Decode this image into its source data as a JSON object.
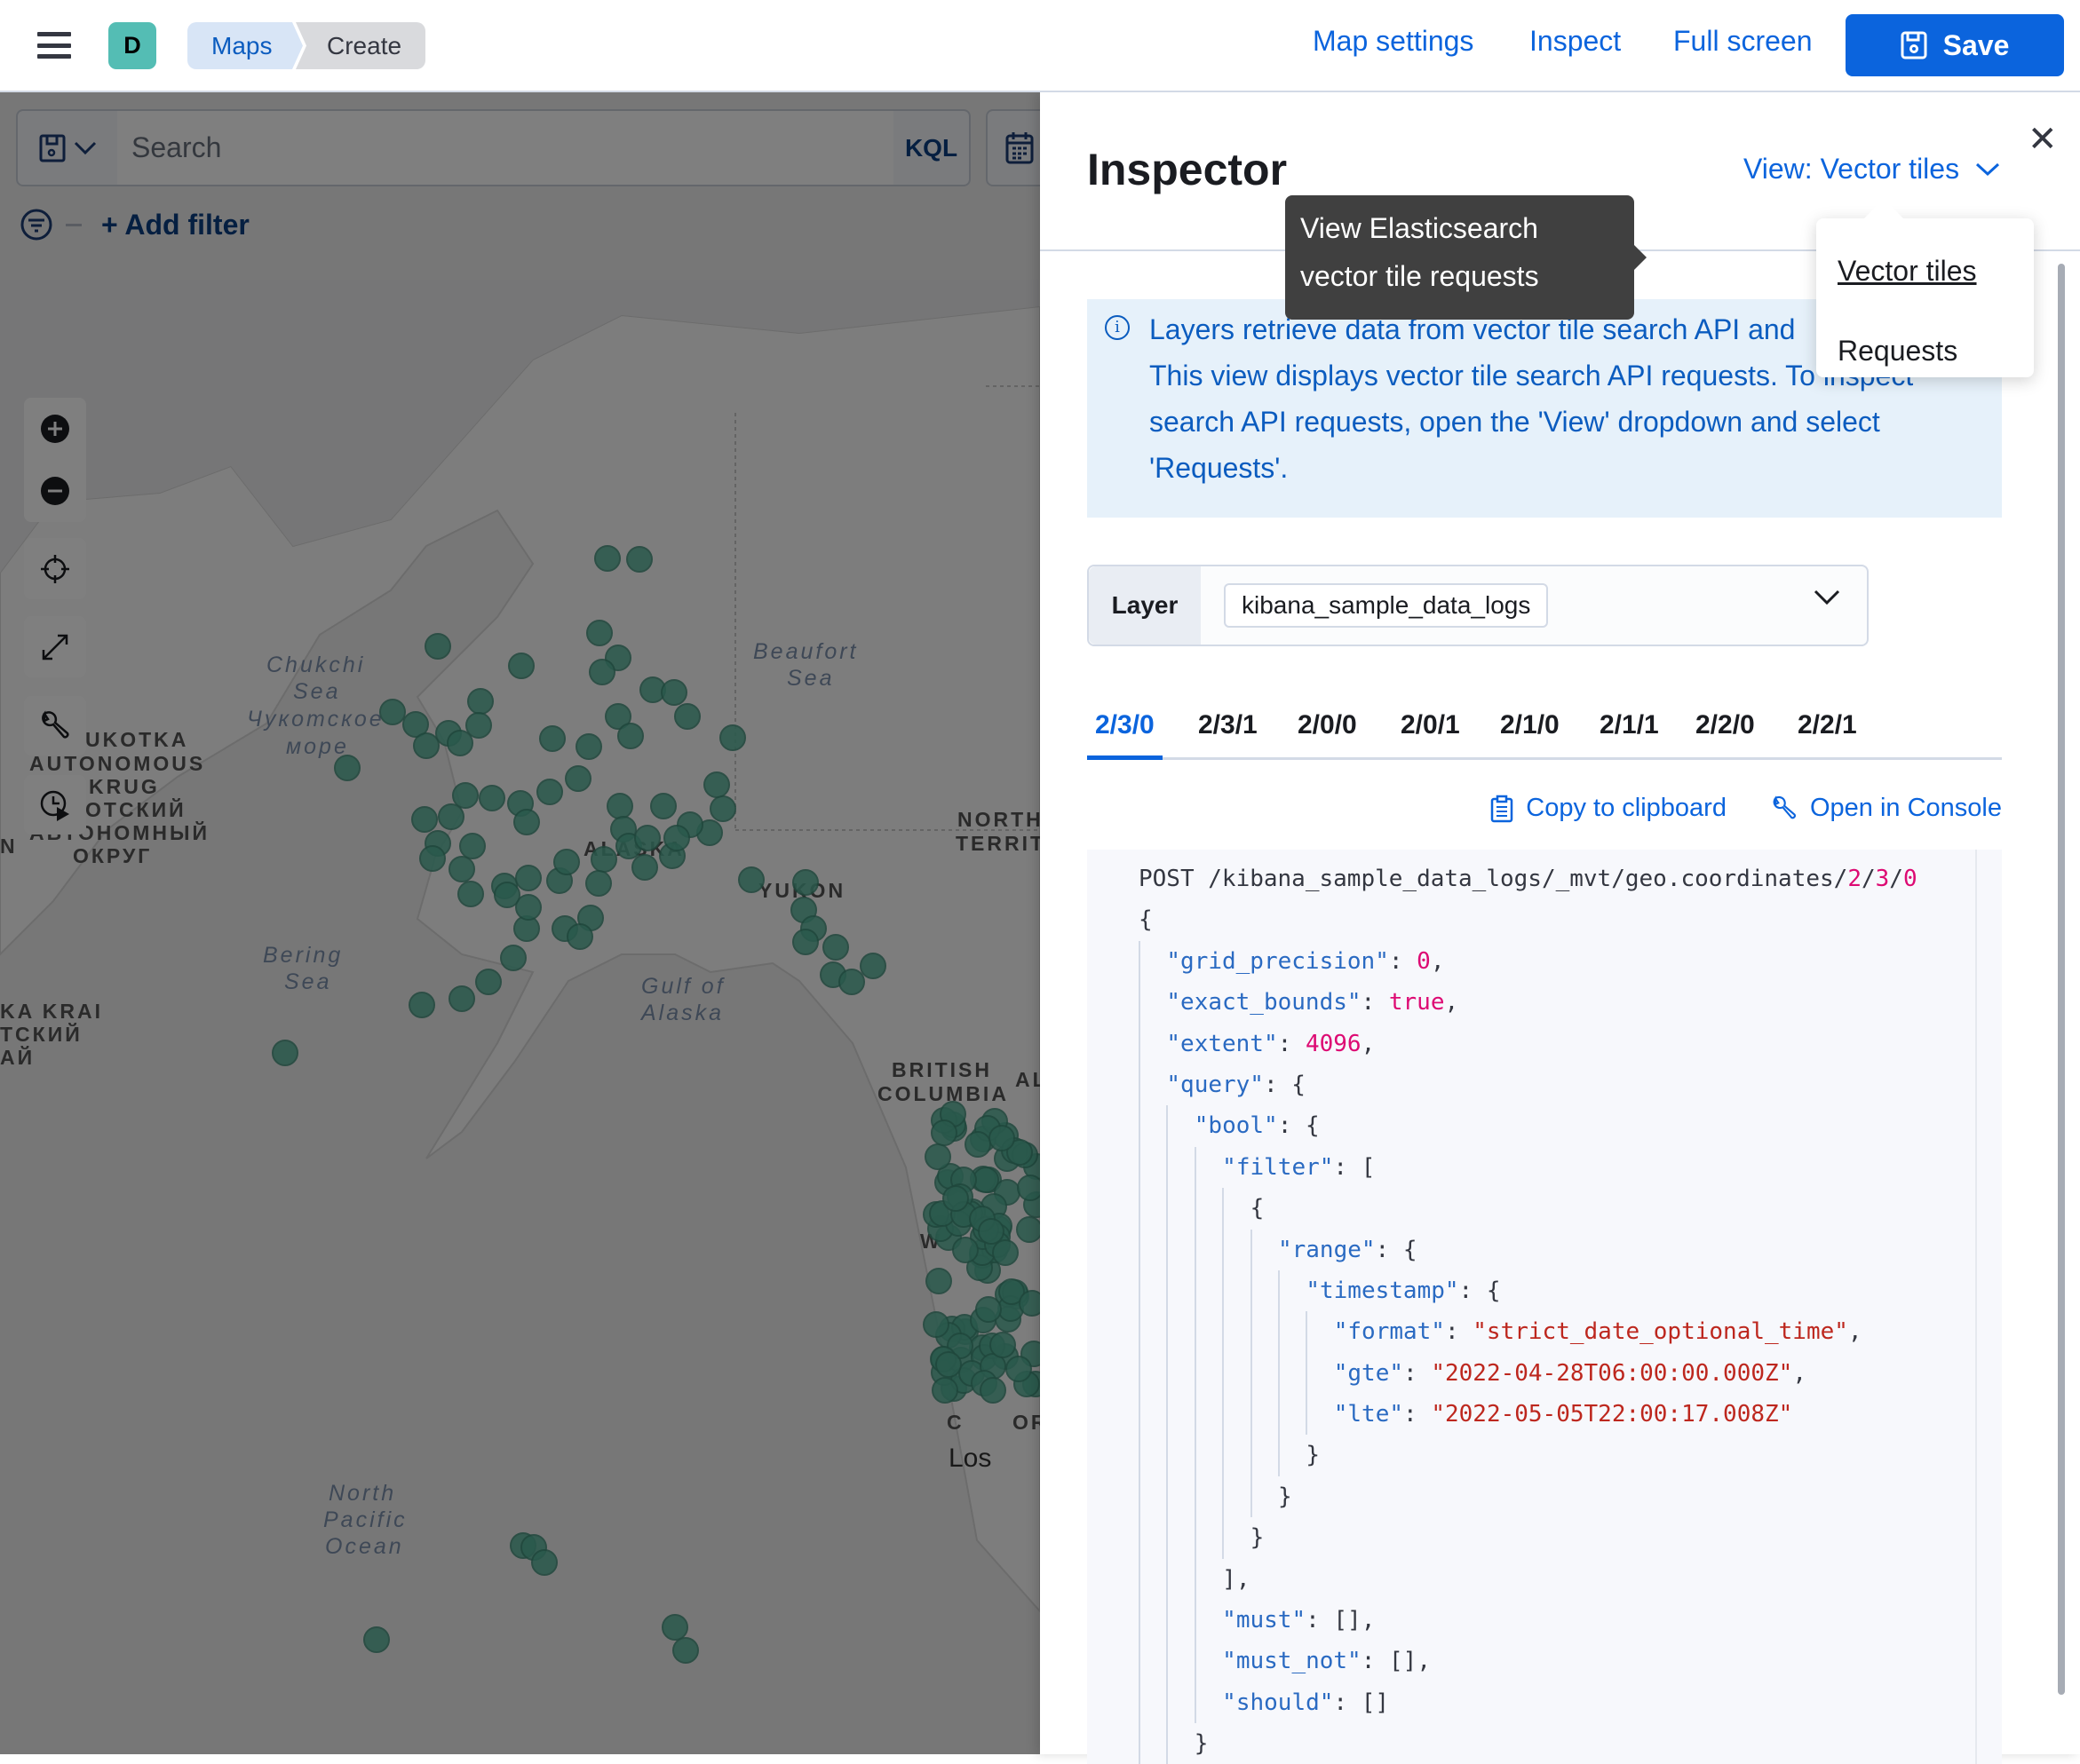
{
  "header": {
    "avatar_initial": "D",
    "breadcrumbs": [
      "Maps",
      "Create"
    ],
    "links": [
      "Map settings",
      "Inspect",
      "Full screen"
    ],
    "save_label": "Save",
    "accent": "#0b64dd"
  },
  "query_bar": {
    "search_placeholder": "Search",
    "language": "KQL",
    "add_filter": "+ Add filter"
  },
  "map": {
    "labels": [
      "Chukchi",
      "Sea",
      "Чукотское",
      "море",
      "Beaufort",
      "Sea",
      "UKOTKA",
      "AUTONOMOUS",
      "KRUG",
      "ОТСКИЙ",
      "АВТОНОМНЫЙ",
      "ОКРУГ",
      "N",
      "ALASKA",
      "YUKON",
      "NORTHW",
      "TERRITO",
      "Bering",
      "Sea",
      "Gulf of",
      "Alaska",
      "KA KRAI",
      "ТСКИЙ",
      "АЙ",
      "BRITISH",
      "COLUMBIA",
      "AL",
      "North",
      "Pacific",
      "Ocean",
      "W",
      "C",
      "OR",
      "Los"
    ],
    "point_color": "#54b399"
  },
  "inspector": {
    "title": "Inspector",
    "view_label": "View: Vector tiles",
    "tooltip": "View Elasticsearch vector tile requests",
    "view_options": [
      "Vector tiles",
      "Requests"
    ],
    "selected_view": "Vector tiles",
    "callout_lines": [
      "Layers retrieve data from vector tile search API and",
      "This view displays vector tile search API requests. To inspect",
      "search API requests, open the 'View' dropdown and select",
      "'Requests'."
    ],
    "layer_label": "Layer",
    "layer_value": "kibana_sample_data_logs",
    "tabs": [
      "2/3/0",
      "2/3/1",
      "2/0/0",
      "2/0/1",
      "2/1/0",
      "2/1/1",
      "2/2/0",
      "2/2/1"
    ],
    "active_tab": "2/3/0",
    "copy_label": "Copy to clipboard",
    "console_label": "Open in Console",
    "code": [
      {
        "indent": 0,
        "parts": [
          [
            "p",
            "POST /kibana_sample_data_logs/_mvt/geo.coordinates/"
          ],
          [
            "n",
            "2"
          ],
          [
            "p",
            "/"
          ],
          [
            "n",
            "3"
          ],
          [
            "p",
            "/"
          ],
          [
            "n",
            "0"
          ]
        ]
      },
      {
        "indent": 0,
        "parts": [
          [
            "p",
            "{"
          ]
        ]
      },
      {
        "indent": 1,
        "parts": [
          [
            "k",
            "\"grid_precision\""
          ],
          [
            "p",
            ": "
          ],
          [
            "n",
            "0"
          ],
          [
            "p",
            ","
          ]
        ]
      },
      {
        "indent": 1,
        "parts": [
          [
            "k",
            "\"exact_bounds\""
          ],
          [
            "p",
            ": "
          ],
          [
            "n",
            "true"
          ],
          [
            "p",
            ","
          ]
        ]
      },
      {
        "indent": 1,
        "parts": [
          [
            "k",
            "\"extent\""
          ],
          [
            "p",
            ": "
          ],
          [
            "n",
            "4096"
          ],
          [
            "p",
            ","
          ]
        ]
      },
      {
        "indent": 1,
        "parts": [
          [
            "k",
            "\"query\""
          ],
          [
            "p",
            ": {"
          ]
        ]
      },
      {
        "indent": 2,
        "parts": [
          [
            "k",
            "\"bool\""
          ],
          [
            "p",
            ": {"
          ]
        ]
      },
      {
        "indent": 3,
        "parts": [
          [
            "k",
            "\"filter\""
          ],
          [
            "p",
            ": ["
          ]
        ]
      },
      {
        "indent": 4,
        "parts": [
          [
            "p",
            "{"
          ]
        ]
      },
      {
        "indent": 5,
        "parts": [
          [
            "k",
            "\"range\""
          ],
          [
            "p",
            ": {"
          ]
        ]
      },
      {
        "indent": 6,
        "parts": [
          [
            "k",
            "\"timestamp\""
          ],
          [
            "p",
            ": {"
          ]
        ]
      },
      {
        "indent": 7,
        "parts": [
          [
            "k",
            "\"format\""
          ],
          [
            "p",
            ": "
          ],
          [
            "s",
            "\"strict_date_optional_time\""
          ],
          [
            "p",
            ","
          ]
        ]
      },
      {
        "indent": 7,
        "parts": [
          [
            "k",
            "\"gte\""
          ],
          [
            "p",
            ": "
          ],
          [
            "s",
            "\"2022-04-28T06:00:00.000Z\""
          ],
          [
            "p",
            ","
          ]
        ]
      },
      {
        "indent": 7,
        "parts": [
          [
            "k",
            "\"lte\""
          ],
          [
            "p",
            ": "
          ],
          [
            "s",
            "\"2022-05-05T22:00:17.008Z\""
          ]
        ]
      },
      {
        "indent": 6,
        "parts": [
          [
            "p",
            "}"
          ]
        ]
      },
      {
        "indent": 5,
        "parts": [
          [
            "p",
            "}"
          ]
        ]
      },
      {
        "indent": 4,
        "parts": [
          [
            "p",
            "}"
          ]
        ]
      },
      {
        "indent": 3,
        "parts": [
          [
            "p",
            "],"
          ]
        ]
      },
      {
        "indent": 3,
        "parts": [
          [
            "k",
            "\"must\""
          ],
          [
            "p",
            ": [],"
          ]
        ]
      },
      {
        "indent": 3,
        "parts": [
          [
            "k",
            "\"must_not\""
          ],
          [
            "p",
            ": [],"
          ]
        ]
      },
      {
        "indent": 3,
        "parts": [
          [
            "k",
            "\"should\""
          ],
          [
            "p",
            ": []"
          ]
        ]
      },
      {
        "indent": 2,
        "parts": [
          [
            "p",
            "}"
          ]
        ]
      }
    ]
  }
}
